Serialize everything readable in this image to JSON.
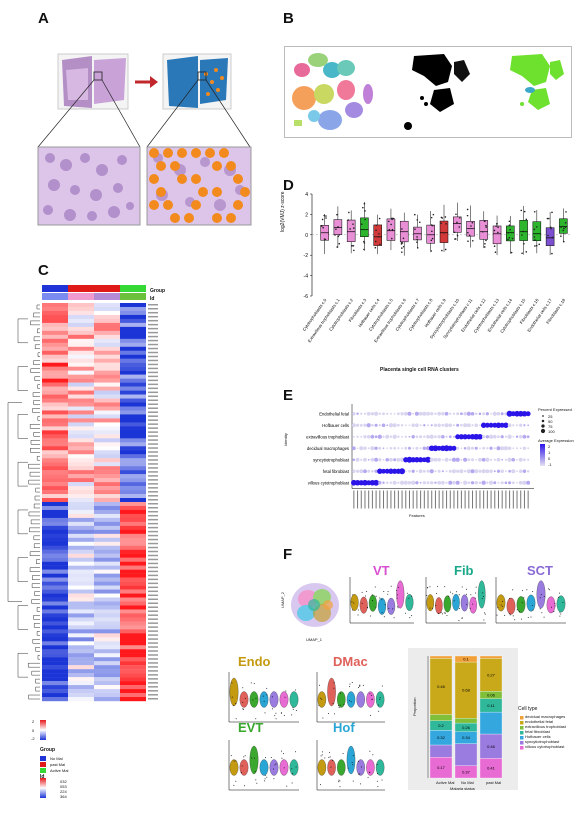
{
  "panels": {
    "a": "A",
    "b": "B",
    "c": "C",
    "d": "D",
    "e": "E",
    "f": "F"
  },
  "panel_d": {
    "ylabel": "log2(VMJ) z-score",
    "xlabel": "Placenta single cell RNA clusters",
    "yticks": [
      "4",
      "2",
      "0",
      "-2",
      "-4",
      "-6"
    ],
    "clusters": [
      "Cytotrophoblasts c.0",
      "Extravillous trophoblasts c.1",
      "Cytotrophoblasts c.2",
      "Fibroblasts c.3",
      "Hofbauer cells c.4",
      "Cytotrophoblasts c.5",
      "Extravillous trophoblasts c.6",
      "Cytotrophoblasts c.7",
      "Cytotrophoblasts c.8",
      "Hofbauer cells c.9",
      "Syncytiotrophoblasts c.10",
      "Syncytiotrophoblasts c.11",
      "Endothelial cells c.12",
      "Cytotrophoblasts c.13",
      "Endothelial cells c.14",
      "Cytotrophoblasts c.15",
      "Fibroblasts c.16",
      "Endothelial cells c.17",
      "Fibroblasts c.18"
    ],
    "colors": [
      "#e88fd6",
      "#e88fd6",
      "#e88fd6",
      "#2db52d",
      "#d23a3a",
      "#e88fd6",
      "#e88fd6",
      "#e88fd6",
      "#e88fd6",
      "#d23a3a",
      "#e88fd6",
      "#e88fd6",
      "#e88fd6",
      "#e88fd6",
      "#2db52d",
      "#2db52d",
      "#2db52d",
      "#7b4fd0",
      "#2db52d"
    ],
    "medians": [
      0.2,
      0.7,
      0.3,
      0.5,
      -0.2,
      0.4,
      0.3,
      0.1,
      0.0,
      0.2,
      1.1,
      0.6,
      0.3,
      0.1,
      0.2,
      0.3,
      0.1,
      -0.3,
      0.8
    ]
  },
  "panel_c": {
    "legend_group_title": "Group",
    "legend_id_title": "Id",
    "groups": [
      {
        "label": "No Mal",
        "color": "#1f33d6"
      },
      {
        "label": "past Mal",
        "color": "#e01919"
      },
      {
        "label": "Active Mal",
        "color": "#35d835"
      }
    ],
    "ids": [
      {
        "label": "032",
        "color": "#7b8cf0"
      },
      {
        "label": "053",
        "color": "#f09ad0"
      },
      {
        "label": "224",
        "color": "#b58bd8"
      },
      {
        "label": "364",
        "color": "#6cc13a"
      }
    ],
    "scale_ticks": [
      "2",
      "1",
      "0",
      "-1",
      "-2"
    ],
    "top_title_group": "Group",
    "top_title_id": "Id"
  },
  "panel_e": {
    "ylabel": "Identity",
    "xlabel": "Features",
    "rows": [
      "Endothelial fetal",
      "Hofbauer cells",
      "extravillous trophoblast",
      "decidual macrophages",
      "syncytiotrophoblast",
      "fetal fibroblast",
      "villous cytotrophoblast"
    ],
    "legend_pct_title": "Percent Expressed",
    "legend_pct": [
      "25",
      "50",
      "75",
      "100"
    ],
    "legend_avg_title": "Average Expression",
    "legend_avg": [
      "2",
      "1",
      "0",
      "-1"
    ]
  },
  "panel_f": {
    "violins": [
      {
        "title": "VT",
        "color": "#d94fcf"
      },
      {
        "title": "Fib",
        "color": "#1aa88a"
      },
      {
        "title": "SCT",
        "color": "#8a6ad6"
      },
      {
        "title": "Endo",
        "color": "#c49a10"
      },
      {
        "title": "DMac",
        "color": "#e0605a"
      },
      {
        "title": "EVT",
        "color": "#3aa72e"
      },
      {
        "title": "Hof",
        "color": "#2aa6d6"
      }
    ],
    "xaxis_small": "Identity",
    "umap_x": "UMAP_1",
    "umap_y": "UMAP_2",
    "bar_ylabel": "Proportion",
    "bar_xlabel": "Malaria status",
    "bar_categories": [
      "Active Mal",
      "No Mal",
      "past Mal"
    ],
    "legend_title": "Cell type",
    "legend": [
      {
        "label": "decidual macrophages",
        "color": "#f2a13a"
      },
      {
        "label": "endothelial fetal",
        "color": "#c9a81a"
      },
      {
        "label": "extravillous trophoblast",
        "color": "#7fbf3a"
      },
      {
        "label": "fetal fibroblast",
        "color": "#2fb89a"
      },
      {
        "label": "Hofbauer cells",
        "color": "#34a8de"
      },
      {
        "label": "syncytiotrophoblast",
        "color": "#9a7be0"
      },
      {
        "label": "villous cytotrophoblast",
        "color": "#e86ad3"
      }
    ],
    "bars": [
      [
        0.02,
        0.46,
        0.05,
        0.08,
        0.12,
        0.1,
        0.17
      ],
      [
        0.05,
        0.46,
        0.04,
        0.07,
        0.1,
        0.18,
        0.1
      ],
      [
        0.02,
        0.27,
        0.06,
        0.11,
        0.18,
        0.2,
        0.16
      ]
    ],
    "bar_labels": [
      [
        "",
        "0.46",
        "",
        "0.2",
        "0.32",
        "",
        "0.17"
      ],
      [
        "0.1",
        "0.68",
        "",
        "0.26",
        "0.34",
        "",
        "0.37"
      ],
      [
        "",
        "0.27",
        "0.06",
        "0.11",
        "",
        "0.46",
        "0.41"
      ]
    ]
  },
  "chart_data": {
    "type": "bar",
    "categories": [
      "Active Mal",
      "No Mal",
      "past Mal"
    ],
    "series": [
      {
        "name": "decidual macrophages",
        "values": [
          0.02,
          0.05,
          0.02
        ]
      },
      {
        "name": "endothelial fetal",
        "values": [
          0.46,
          0.46,
          0.27
        ]
      },
      {
        "name": "extravillous trophoblast",
        "values": [
          0.05,
          0.04,
          0.06
        ]
      },
      {
        "name": "fetal fibroblast",
        "values": [
          0.08,
          0.07,
          0.11
        ]
      },
      {
        "name": "Hofbauer cells",
        "values": [
          0.12,
          0.1,
          0.18
        ]
      },
      {
        "name": "syncytiotrophoblast",
        "values": [
          0.1,
          0.18,
          0.2
        ]
      },
      {
        "name": "villous cytotrophoblast",
        "values": [
          0.17,
          0.1,
          0.16
        ]
      }
    ],
    "xlabel": "Malaria status",
    "ylabel": "Proportion",
    "ylim": [
      0,
      1
    ]
  }
}
